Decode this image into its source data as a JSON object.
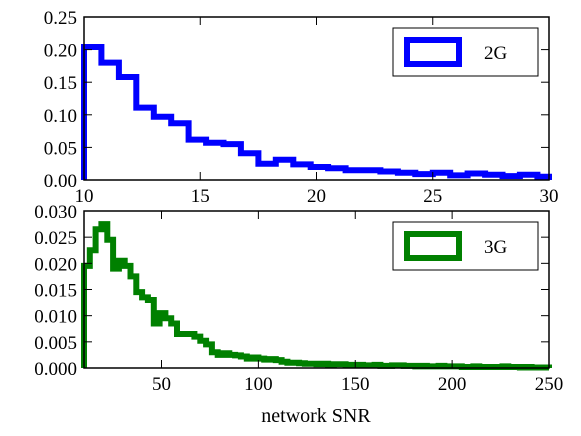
{
  "chart_data": [
    {
      "type": "step",
      "series": [
        {
          "name": "2G",
          "color": "#0000ff",
          "bin_edges": [
            10,
            10.75,
            11.5,
            12.25,
            13,
            13.75,
            14.5,
            15.25,
            16,
            16.75,
            17.5,
            18.25,
            19,
            19.75,
            20.5,
            21.25,
            22,
            22.75,
            23.5,
            24.25,
            25,
            25.75,
            26.5,
            27.25,
            28,
            28.75,
            29.5,
            30
          ],
          "values": [
            0.204,
            0.18,
            0.158,
            0.111,
            0.097,
            0.087,
            0.062,
            0.057,
            0.055,
            0.041,
            0.025,
            0.031,
            0.024,
            0.02,
            0.018,
            0.015,
            0.015,
            0.013,
            0.011,
            0.009,
            0.011,
            0.007,
            0.01,
            0.008,
            0.006,
            0.008,
            0.005
          ]
        }
      ],
      "xlim": [
        10,
        30
      ],
      "ylim": [
        0,
        0.25
      ],
      "xticks": [
        10,
        15,
        20,
        25,
        30
      ],
      "xtick_labels": [
        "10",
        "15",
        "20",
        "25",
        "30"
      ],
      "yticks": [
        0,
        0.05,
        0.1,
        0.15,
        0.2,
        0.25
      ],
      "ytick_labels": [
        "0.00",
        "0.05",
        "0.10",
        "0.15",
        "0.20",
        "0.25"
      ],
      "legend": "top-right"
    },
    {
      "type": "step",
      "series": [
        {
          "name": "3G",
          "color": "#008000",
          "bin_edges": [
            10,
            13,
            16,
            19,
            22,
            25,
            28,
            31,
            34,
            37,
            40,
            43,
            46,
            49,
            52,
            55,
            58,
            61,
            64,
            67,
            70,
            73,
            76,
            79,
            82,
            85,
            88,
            91,
            94,
            97,
            100,
            103,
            106,
            109,
            112,
            115,
            118,
            121,
            124,
            127,
            130,
            133,
            136,
            139,
            142,
            145,
            148,
            151,
            154,
            157,
            160,
            163,
            166,
            169,
            172,
            175,
            178,
            181,
            184,
            187,
            190,
            193,
            196,
            199,
            202,
            205,
            208,
            211,
            214,
            217,
            220,
            223,
            226,
            229,
            232,
            235,
            238,
            241,
            244,
            247,
            250
          ],
          "values": [
            0.0195,
            0.0225,
            0.0265,
            0.0275,
            0.0245,
            0.019,
            0.0205,
            0.0195,
            0.0175,
            0.0145,
            0.0135,
            0.013,
            0.0085,
            0.0105,
            0.0095,
            0.0085,
            0.0065,
            0.0065,
            0.0065,
            0.006,
            0.0052,
            0.0045,
            0.003,
            0.0025,
            0.0028,
            0.0025,
            0.0024,
            0.0022,
            0.0018,
            0.002,
            0.0018,
            0.0016,
            0.0017,
            0.0015,
            0.0012,
            0.001,
            0.001,
            0.0009,
            0.0008,
            0.0008,
            0.0007,
            0.0008,
            0.0006,
            0.0007,
            0.0007,
            0.0006,
            0.0005,
            0.0006,
            0.0005,
            0.0005,
            0.0006,
            0.0004,
            0.0004,
            0.0005,
            0.0005,
            0.0004,
            0.0004,
            0.0003,
            0.0004,
            0.0003,
            0.0003,
            0.0004,
            0.0003,
            0.0003,
            0.0003,
            0.0002,
            0.0002,
            0.0003,
            0.0002,
            0.0002,
            0.0002,
            0.0002,
            0.0003,
            0.0002,
            0.0002,
            0.0001,
            0.0002,
            0.0001,
            0.0001,
            0.0001
          ]
        }
      ],
      "xlim": [
        10,
        250
      ],
      "ylim": [
        0,
        0.03
      ],
      "xticks": [
        50,
        100,
        150,
        200,
        250
      ],
      "xtick_labels": [
        "50",
        "100",
        "150",
        "200",
        "250"
      ],
      "yticks": [
        0,
        0.005,
        0.01,
        0.015,
        0.02,
        0.025,
        0.03
      ],
      "ytick_labels": [
        "0.000",
        "0.005",
        "0.010",
        "0.015",
        "0.020",
        "0.025",
        "0.030"
      ],
      "xlabel": "network SNR",
      "legend": "top-right"
    }
  ]
}
